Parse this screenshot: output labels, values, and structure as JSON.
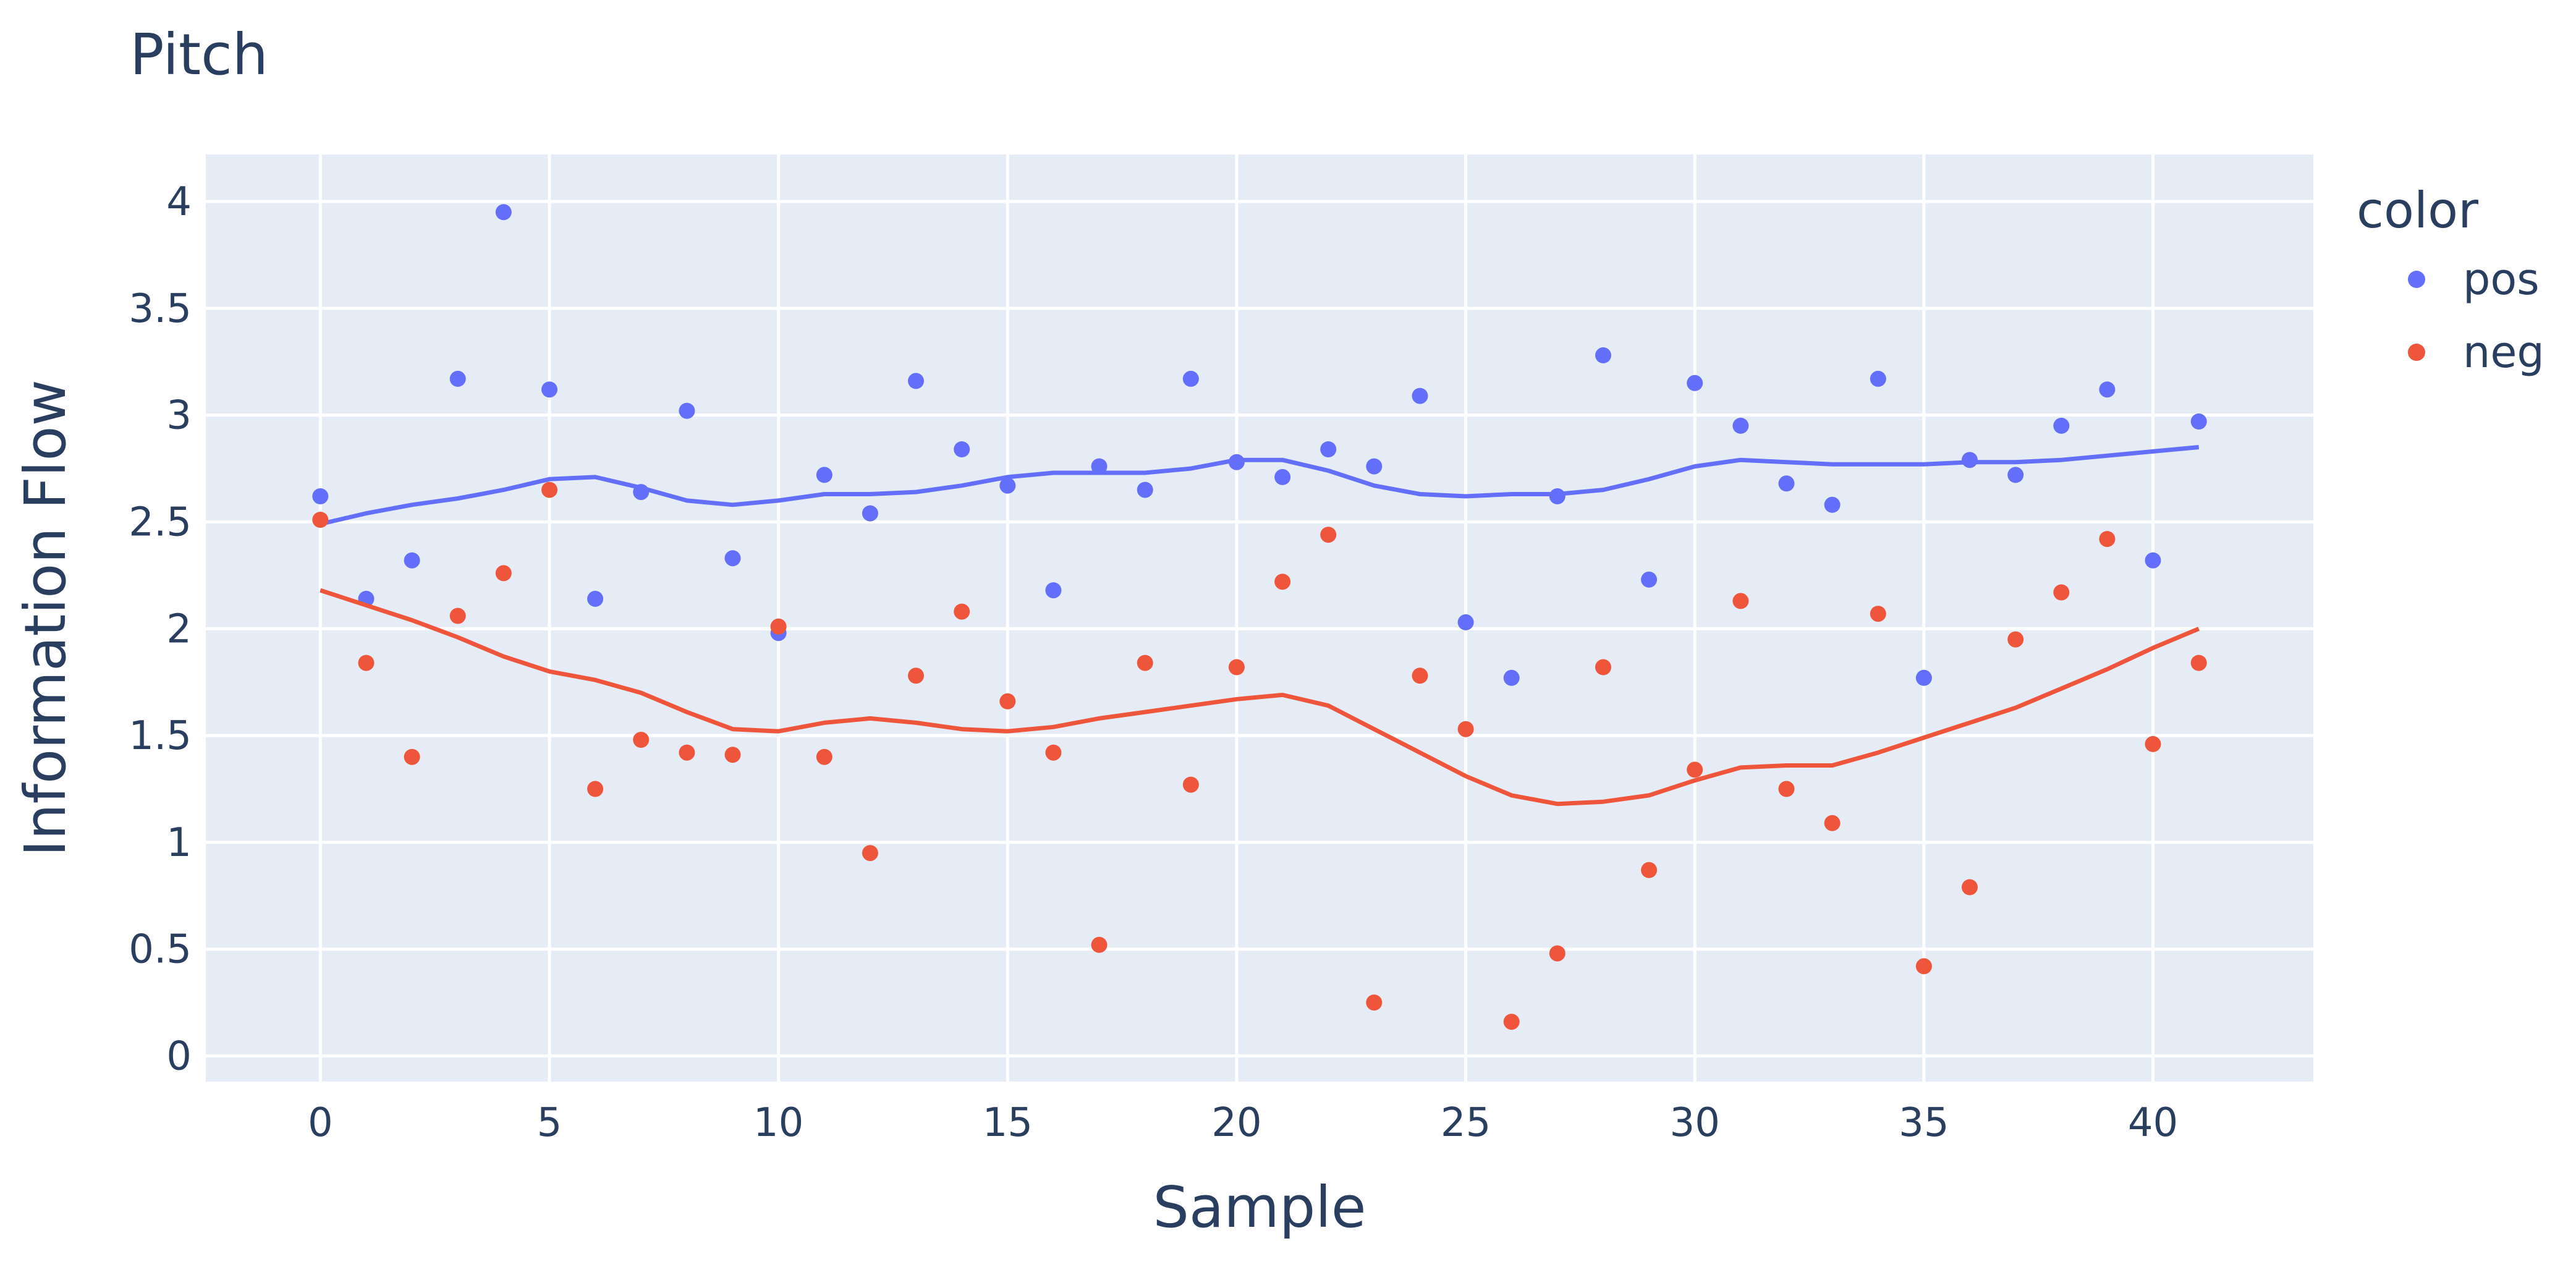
{
  "chart_data": {
    "type": "scatter",
    "title": "Pitch",
    "xlabel": "Sample",
    "ylabel": "Information Flow",
    "xlim": [
      -2.5,
      43.5
    ],
    "ylim": [
      -0.12,
      4.22
    ],
    "grid": true,
    "legend_position": "right",
    "x_ticks": [
      0,
      5,
      10,
      15,
      20,
      25,
      30,
      35,
      40
    ],
    "y_ticks": [
      0,
      0.5,
      1,
      1.5,
      2,
      2.5,
      3,
      3.5,
      4
    ],
    "y_tick_labels": [
      "0",
      "0.5",
      "1",
      "1.5",
      "2",
      "2.5",
      "3",
      "3.5",
      "4"
    ],
    "legend_title": "color",
    "series": [
      {
        "name": "pos",
        "color": "#636efa",
        "x": [
          0,
          1,
          2,
          3,
          4,
          5,
          6,
          7,
          8,
          9,
          10,
          11,
          12,
          13,
          14,
          15,
          16,
          17,
          18,
          19,
          20,
          21,
          22,
          23,
          24,
          25,
          26,
          27,
          28,
          29,
          30,
          31,
          32,
          33,
          34,
          35,
          36,
          37,
          38,
          39,
          40,
          41
        ],
        "points": [
          2.62,
          2.14,
          2.32,
          3.17,
          3.95,
          3.12,
          2.14,
          2.64,
          3.02,
          2.33,
          1.98,
          2.72,
          2.54,
          3.16,
          2.84,
          2.67,
          2.18,
          2.76,
          2.65,
          3.17,
          2.78,
          2.71,
          2.84,
          2.76,
          3.09,
          2.03,
          1.77,
          2.62,
          3.28,
          2.23,
          3.15,
          2.95,
          2.68,
          2.58,
          3.17,
          1.77,
          2.79,
          2.72,
          2.95,
          3.12,
          2.32,
          2.97
        ],
        "trend": [
          2.49,
          2.54,
          2.58,
          2.61,
          2.65,
          2.7,
          2.71,
          2.66,
          2.6,
          2.58,
          2.6,
          2.63,
          2.63,
          2.64,
          2.67,
          2.71,
          2.73,
          2.73,
          2.73,
          2.75,
          2.79,
          2.79,
          2.74,
          2.67,
          2.63,
          2.62,
          2.63,
          2.63,
          2.65,
          2.7,
          2.76,
          2.79,
          2.78,
          2.77,
          2.77,
          2.77,
          2.78,
          2.78,
          2.79,
          2.81,
          2.83,
          2.85
        ]
      },
      {
        "name": "neg",
        "color": "#ef553b",
        "x": [
          0,
          1,
          2,
          3,
          4,
          5,
          6,
          7,
          8,
          9,
          10,
          11,
          12,
          13,
          14,
          15,
          16,
          17,
          18,
          19,
          20,
          21,
          22,
          23,
          24,
          25,
          26,
          27,
          28,
          29,
          30,
          31,
          32,
          33,
          34,
          35,
          36,
          37,
          38,
          39,
          40,
          41
        ],
        "points": [
          2.51,
          1.84,
          1.4,
          2.06,
          2.26,
          2.65,
          1.25,
          1.48,
          1.42,
          1.41,
          2.01,
          1.4,
          0.95,
          1.78,
          2.08,
          1.66,
          1.42,
          0.52,
          1.84,
          1.27,
          1.82,
          2.22,
          2.44,
          0.25,
          1.78,
          1.53,
          0.16,
          0.48,
          1.82,
          0.87,
          1.34,
          2.13,
          1.25,
          1.09,
          2.07,
          0.42,
          0.79,
          1.95,
          2.17,
          2.42,
          1.46,
          1.84
        ],
        "trend": [
          2.18,
          2.11,
          2.04,
          1.96,
          1.87,
          1.8,
          1.76,
          1.7,
          1.61,
          1.53,
          1.52,
          1.56,
          1.58,
          1.56,
          1.53,
          1.52,
          1.54,
          1.58,
          1.61,
          1.64,
          1.67,
          1.69,
          1.64,
          1.53,
          1.42,
          1.31,
          1.22,
          1.18,
          1.19,
          1.22,
          1.29,
          1.35,
          1.36,
          1.36,
          1.42,
          1.49,
          1.56,
          1.63,
          1.72,
          1.81,
          1.91,
          2.0
        ]
      }
    ]
  }
}
